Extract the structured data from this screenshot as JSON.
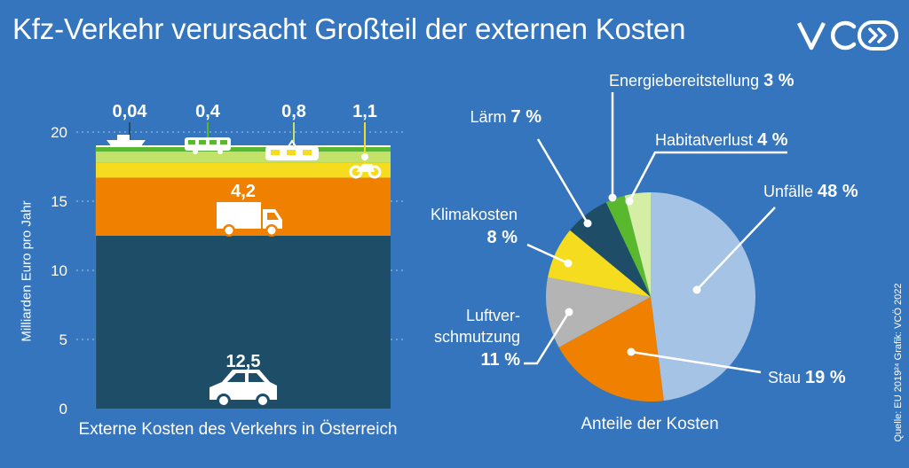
{
  "title": "Kfz-Verkehr verursacht Großteil der externen Kosten",
  "logo_text": "VCÖ",
  "source": "Quelle: EU 2019²⁴ Grafik: VCÖ 2022",
  "colors": {
    "background": "#3575bd",
    "pkw": "#1e4e67",
    "lkw": "#f08000",
    "motorrad": "#f5dc1e",
    "bahn": "#c3e26a",
    "bus": "#5ab82f",
    "schiff": "#1e4e67",
    "unfaelle": "#a4c3e5",
    "stau": "#f08000",
    "luftverschmutzung": "#b4b4b4",
    "klimakosten": "#f5dc1e",
    "laerm": "#1e4e67",
    "energie": "#5ab82f",
    "habitat": "#d4eea6"
  },
  "chart_data": [
    {
      "type": "bar",
      "stacked": true,
      "xlabel": "Externe Kosten des Verkehrs in Österreich",
      "ylabel": "Milliarden Euro pro Jahr",
      "ylim": [
        0,
        20
      ],
      "yticks": [
        0,
        5,
        10,
        15,
        20
      ],
      "grid": true,
      "series": [
        {
          "label": "12,5",
          "value": 12.5,
          "icon": "car-icon",
          "color_key": "pkw"
        },
        {
          "label": "4,2",
          "value": 4.2,
          "icon": "truck-icon",
          "color_key": "lkw"
        },
        {
          "label": "1,1",
          "value": 1.1,
          "icon": "motorcycle-icon",
          "color_key": "motorrad"
        },
        {
          "label": "0,8",
          "value": 0.8,
          "icon": "train-icon",
          "color_key": "bahn"
        },
        {
          "label": "0,4",
          "value": 0.4,
          "icon": "bus-icon",
          "color_key": "bus"
        },
        {
          "label": "0,04",
          "value": 0.04,
          "icon": "ship-icon",
          "color_key": "schiff"
        }
      ]
    },
    {
      "type": "pie",
      "caption": "Anteile der Kosten",
      "slices": [
        {
          "name": "Unfälle",
          "value": 48,
          "pct": "48 %",
          "color_key": "unfaelle"
        },
        {
          "name": "Stau",
          "value": 19,
          "pct": "19 %",
          "color_key": "stau"
        },
        {
          "name": "Luftver-\nschmutzung",
          "value": 11,
          "pct": "11 %",
          "color_key": "luftverschmutzung"
        },
        {
          "name": "Klimakosten",
          "value": 8,
          "pct": "8 %",
          "color_key": "klimakosten"
        },
        {
          "name": "Lärm",
          "value": 7,
          "pct": "7 %",
          "color_key": "laerm"
        },
        {
          "name": "Energiebereitstellung",
          "value": 3,
          "pct": "3 %",
          "color_key": "energie"
        },
        {
          "name": "Habitatverlust",
          "value": 4,
          "pct": "4 %",
          "color_key": "habitat"
        }
      ]
    }
  ]
}
